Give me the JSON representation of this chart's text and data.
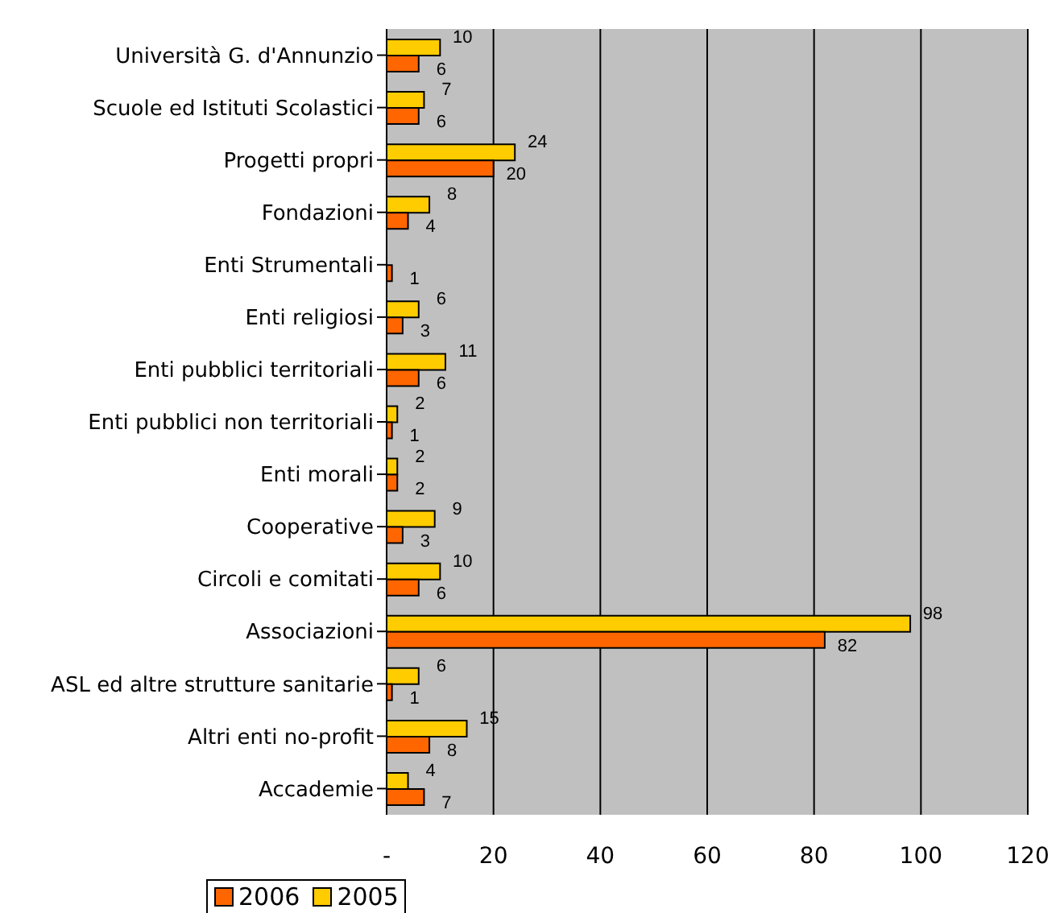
{
  "chart_data": {
    "type": "bar",
    "orientation": "horizontal",
    "categories": [
      "Università G. d'Annunzio",
      "Scuole ed Istituti Scolastici",
      "Progetti propri",
      "Fondazioni",
      "Enti Strumentali",
      "Enti religiosi",
      "Enti pubblici territoriali",
      "Enti pubblici non territoriali",
      "Enti morali",
      "Cooperative",
      "Circoli e comitati",
      "Associazioni",
      "ASL ed altre strutture sanitarie",
      "Altri enti no-profit",
      "Accademie"
    ],
    "series": [
      {
        "name": "2006",
        "color": "#ff6600",
        "values": [
          6,
          6,
          20,
          4,
          1,
          3,
          6,
          1,
          2,
          3,
          6,
          82,
          1,
          8,
          7
        ]
      },
      {
        "name": "2005",
        "color": "#ffcc00",
        "values": [
          10,
          7,
          24,
          8,
          null,
          6,
          11,
          2,
          2,
          9,
          10,
          98,
          6,
          15,
          4
        ]
      }
    ],
    "xlim": [
      0,
      120
    ],
    "xticks": [
      {
        "value": 0,
        "label": "-"
      },
      20,
      40,
      60,
      80,
      100,
      120
    ],
    "grid": "x",
    "legend": "bottom left",
    "data_labels": true
  }
}
